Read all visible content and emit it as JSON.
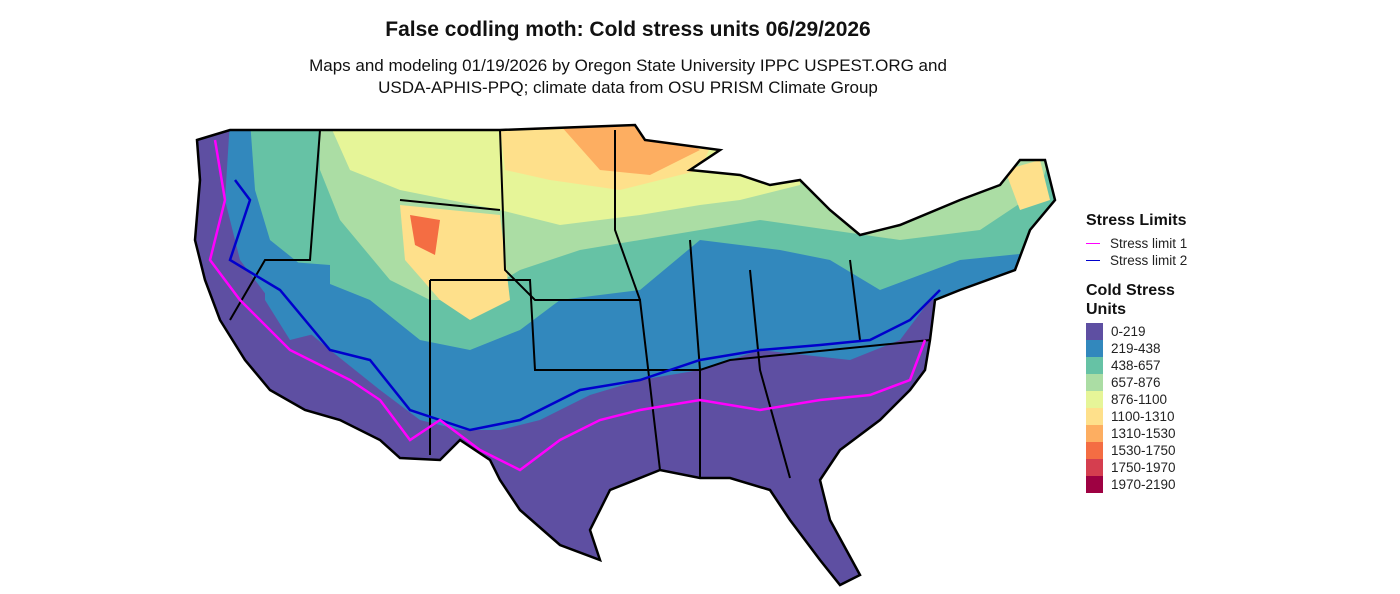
{
  "title": "False codling moth: Cold stress units 06/29/2026",
  "subtitle_line1": "Maps and modeling 01/19/2026 by Oregon State University IPPC USPEST.ORG and",
  "subtitle_line2": "USDA-APHIS-PPQ; climate data from OSU PRISM Climate Group",
  "legend": {
    "stress_title": "Stress Limits",
    "stress_items": [
      {
        "label": "Stress limit 1",
        "color": "#FF00FF"
      },
      {
        "label": "Stress limit 2",
        "color": "#0000CC"
      }
    ],
    "units_title_1": "Cold Stress",
    "units_title_2": "Units",
    "bins": [
      {
        "label": "0-219",
        "color": "#5E4FA2"
      },
      {
        "label": "219-438",
        "color": "#3288BD"
      },
      {
        "label": "438-657",
        "color": "#66C2A5"
      },
      {
        "label": "657-876",
        "color": "#ABDDA4"
      },
      {
        "label": "876-1100",
        "color": "#E6F598"
      },
      {
        "label": "1100-1310",
        "color": "#FEE08B"
      },
      {
        "label": "1310-1530",
        "color": "#FDAE61"
      },
      {
        "label": "1530-1750",
        "color": "#F46D43"
      },
      {
        "label": "1750-1970",
        "color": "#D53E4F"
      },
      {
        "label": "1970-2190",
        "color": "#9E0142"
      }
    ]
  }
}
